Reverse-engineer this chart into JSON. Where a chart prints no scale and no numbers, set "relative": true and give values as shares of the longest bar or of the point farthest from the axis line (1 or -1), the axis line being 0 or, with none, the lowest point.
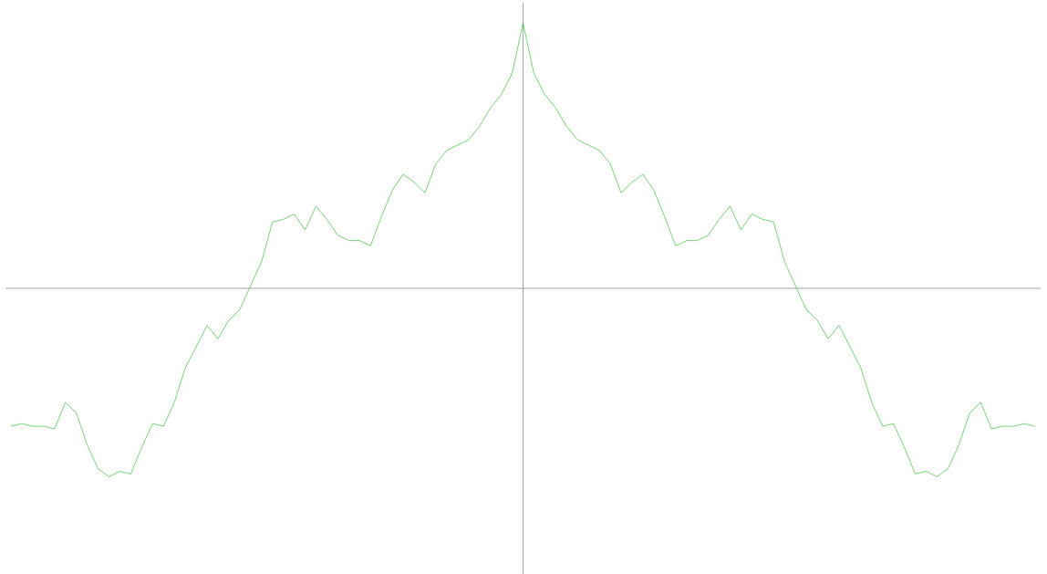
{
  "chart_data": {
    "type": "line",
    "relative": true,
    "color": "#1fb51f",
    "categories": [
      null,
      null,
      null,
      null,
      null,
      null,
      null,
      null,
      null,
      null,
      null,
      null,
      null,
      null,
      null,
      null,
      null,
      null,
      null,
      null,
      null,
      null,
      null,
      null,
      null,
      null,
      null,
      null,
      null,
      null,
      null,
      null,
      null,
      null,
      null,
      null,
      null,
      null,
      null,
      null,
      null,
      null,
      null,
      null,
      null,
      null,
      null,
      null,
      null,
      null,
      null,
      null,
      null,
      null,
      null,
      null,
      null,
      null,
      null,
      null,
      null,
      null,
      null,
      null,
      null,
      null,
      null,
      null,
      null,
      null,
      null,
      null,
      null,
      null,
      null,
      null,
      null,
      null,
      null,
      null,
      null,
      null,
      null,
      null,
      null,
      null,
      null,
      null,
      null,
      null,
      null,
      null,
      null,
      null,
      null
    ],
    "values": [
      -0.52,
      -0.51,
      -0.52,
      -0.52,
      -0.53,
      -0.43,
      -0.47,
      -0.59,
      -0.68,
      -0.71,
      -0.69,
      -0.7,
      -0.6,
      -0.51,
      -0.52,
      -0.43,
      -0.3,
      -0.22,
      -0.14,
      -0.19,
      -0.12,
      -0.08,
      0.01,
      0.1,
      0.25,
      0.26,
      0.28,
      0.22,
      0.31,
      0.26,
      0.2,
      0.18,
      0.18,
      0.16,
      0.27,
      0.37,
      0.43,
      0.4,
      0.36,
      0.47,
      0.52,
      0.54,
      0.56,
      0.61,
      0.68,
      0.73,
      0.81,
      1,
      0.81,
      0.73,
      0.68,
      0.61,
      0.56,
      0.54,
      0.52,
      0.47,
      0.36,
      0.4,
      0.43,
      0.37,
      0.27,
      0.16,
      0.18,
      0.18,
      0.2,
      0.26,
      0.31,
      0.22,
      0.28,
      0.26,
      0.25,
      0.1,
      0.01,
      -0.08,
      -0.12,
      -0.19,
      -0.14,
      -0.22,
      -0.3,
      -0.43,
      -0.52,
      -0.51,
      -0.6,
      -0.7,
      -0.69,
      -0.71,
      -0.68,
      -0.59,
      -0.47,
      -0.43,
      -0.53,
      -0.52,
      -0.52,
      -0.51,
      -0.52
    ]
  }
}
